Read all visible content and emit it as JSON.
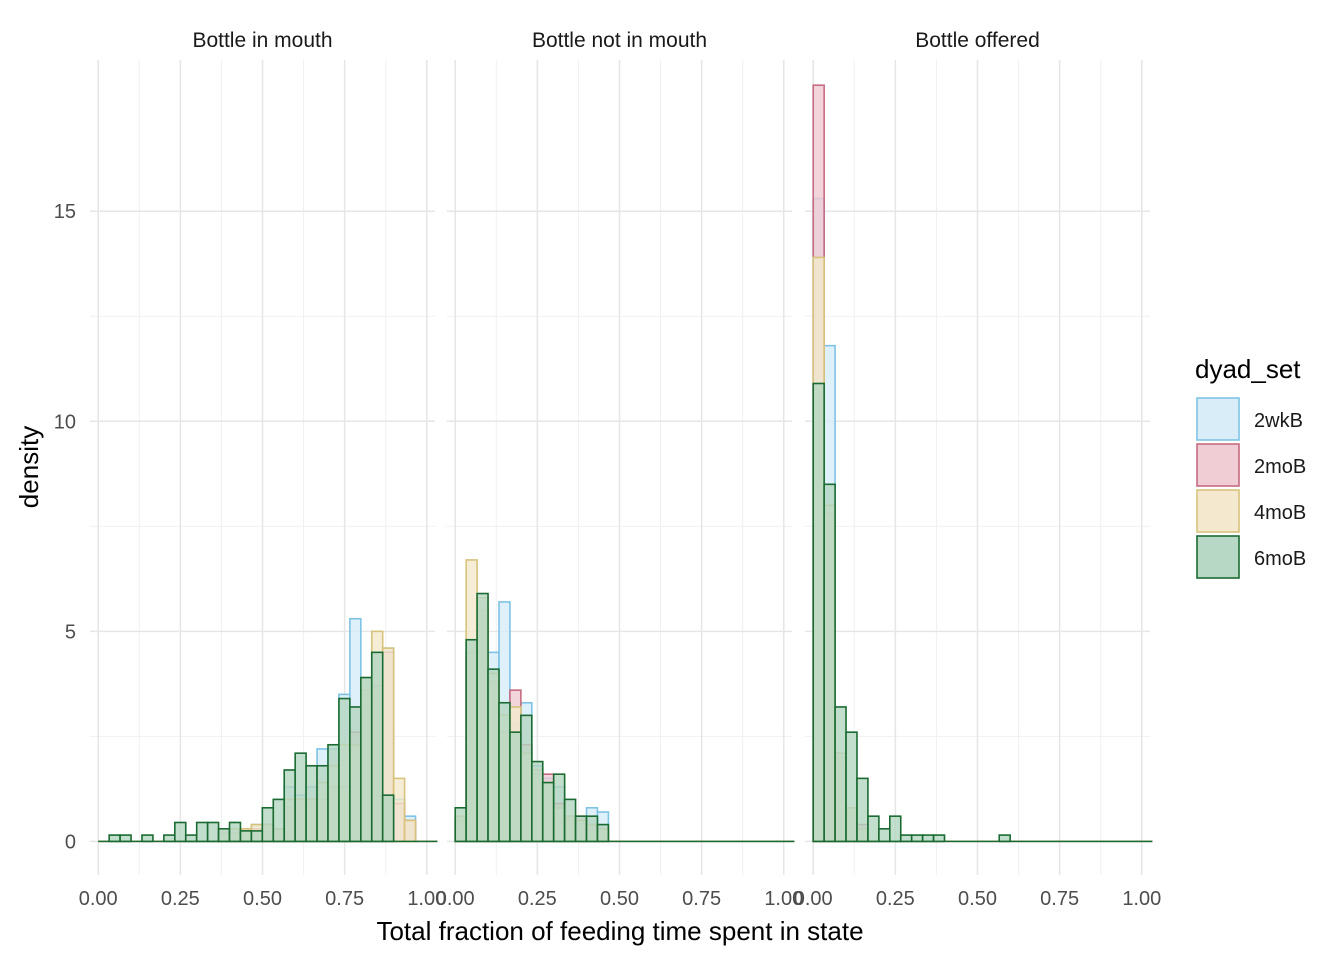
{
  "chart_data": {
    "type": "histogram",
    "xlabel": "Total fraction of feeding time spent in state",
    "ylabel": "density",
    "xlim": [
      -0.025,
      1.025
    ],
    "ylim": [
      -0.8,
      18.6
    ],
    "x_ticks": [
      0,
      0.25,
      0.5,
      0.75,
      1
    ],
    "x_tick_labels": [
      "0.00",
      "0.25",
      "0.50",
      "0.75",
      "1.00"
    ],
    "y_ticks": [
      0,
      5,
      10,
      15
    ],
    "y_tick_labels": [
      "0",
      "5",
      "10",
      "15"
    ],
    "bin_start": 0,
    "bin_width": 0.0333,
    "grid": true,
    "legend": {
      "title": "dyad_set",
      "position": "right",
      "items": [
        {
          "name": "2wkB",
          "fill": "#d6ecf7",
          "stroke": "#7ec3e5"
        },
        {
          "name": "2moB",
          "fill": "#efc9d2",
          "stroke": "#c66b80"
        },
        {
          "name": "4moB",
          "fill": "#f3e8cb",
          "stroke": "#d7c37c"
        },
        {
          "name": "6moB",
          "fill": "#b3d6c1",
          "stroke": "#1a6b32"
        }
      ]
    },
    "panels": [
      {
        "title": "Bottle in mouth",
        "series": [
          {
            "name": "2wkB",
            "values": [
              0,
              0,
              0,
              0,
              0,
              0,
              0,
              0,
              0,
              0,
              0,
              0.2,
              0.3,
              0.3,
              0.4,
              0.4,
              0.3,
              1.3,
              1.1,
              1.3,
              2.2,
              2.2,
              3.5,
              5.3,
              3.0,
              3.3,
              4.6,
              1.0,
              0.6,
              0,
              0
            ]
          },
          {
            "name": "2moB",
            "values": [
              0,
              0,
              0,
              0,
              0,
              0,
              0,
              0,
              0,
              0,
              0,
              0.2,
              0.2,
              0.3,
              0.3,
              0.4,
              0.3,
              0.8,
              1.0,
              1.0,
              1.0,
              1.3,
              1.3,
              2.6,
              3.6,
              3.7,
              4.5,
              0.9,
              0.5,
              0,
              0
            ]
          },
          {
            "name": "4moB",
            "values": [
              0,
              0,
              0,
              0,
              0,
              0,
              0,
              0,
              0,
              0,
              0,
              0.3,
              0.3,
              0.3,
              0.4,
              0.4,
              0.3,
              1.0,
              1.0,
              1.0,
              1.4,
              1.8,
              2.3,
              2.3,
              3.9,
              5.0,
              4.6,
              1.5,
              0.5,
              0,
              0
            ]
          },
          {
            "name": "6moB",
            "values": [
              0,
              0.15,
              0.15,
              0,
              0.15,
              0,
              0.15,
              0.45,
              0.15,
              0.45,
              0.45,
              0.3,
              0.45,
              0.25,
              0.25,
              0.8,
              1.0,
              1.7,
              2.1,
              1.8,
              1.8,
              2.3,
              3.4,
              3.2,
              3.9,
              4.5,
              1.1,
              0,
              0,
              0,
              0
            ]
          }
        ]
      },
      {
        "title": "Bottle not in mouth",
        "series": [
          {
            "name": "2wkB",
            "values": [
              0.5,
              4.5,
              5.0,
              4.5,
              5.7,
              2.8,
              3.3,
              1.8,
              1.5,
              1.3,
              0.5,
              0.4,
              0.8,
              0.7,
              0,
              0,
              0,
              0,
              0,
              0,
              0,
              0,
              0,
              0,
              0,
              0,
              0,
              0,
              0,
              0,
              0
            ]
          },
          {
            "name": "2moB",
            "values": [
              0.5,
              4.5,
              5.5,
              3.8,
              2.6,
              3.6,
              2.3,
              1.6,
              1.6,
              0.9,
              0.6,
              0.6,
              0.4,
              0.3,
              0,
              0,
              0,
              0,
              0,
              0,
              0,
              0,
              0,
              0,
              0,
              0,
              0,
              0,
              0,
              0,
              0
            ]
          },
          {
            "name": "4moB",
            "values": [
              0.6,
              6.7,
              5.8,
              4.0,
              3.0,
              3.2,
              2.1,
              1.7,
              1.4,
              0.8,
              0.6,
              0.5,
              0.4,
              0.3,
              0,
              0,
              0,
              0,
              0,
              0,
              0,
              0,
              0,
              0,
              0,
              0,
              0,
              0,
              0,
              0,
              0
            ]
          },
          {
            "name": "6moB",
            "values": [
              0.8,
              4.8,
              5.9,
              4.1,
              3.3,
              2.6,
              3.0,
              1.9,
              1.4,
              1.6,
              1.0,
              0.6,
              0.6,
              0.4,
              0,
              0,
              0,
              0,
              0,
              0,
              0,
              0,
              0,
              0,
              0,
              0,
              0,
              0,
              0,
              0,
              0
            ]
          }
        ]
      },
      {
        "title": "Bottle offered",
        "series": [
          {
            "name": "2wkB",
            "values": [
              15.3,
              11.8,
              1.8,
              0.5,
              0.3,
              0,
              0,
              0,
              0,
              0,
              0,
              0,
              0,
              0,
              0,
              0,
              0,
              0,
              0,
              0,
              0,
              0,
              0,
              0,
              0,
              0,
              0,
              0,
              0,
              0,
              0
            ]
          },
          {
            "name": "2moB",
            "values": [
              18.0,
              7.8,
              2.0,
              0.8,
              0.4,
              0,
              0,
              0,
              0,
              0,
              0,
              0,
              0,
              0,
              0,
              0,
              0,
              0,
              0,
              0,
              0,
              0,
              0,
              0,
              0,
              0,
              0,
              0,
              0,
              0,
              0
            ]
          },
          {
            "name": "4moB",
            "values": [
              13.9,
              8.0,
              2.1,
              0.8,
              0.3,
              0,
              0,
              0,
              0,
              0,
              0,
              0,
              0,
              0,
              0,
              0,
              0,
              0,
              0,
              0,
              0,
              0,
              0,
              0,
              0,
              0,
              0,
              0,
              0,
              0,
              0
            ]
          },
          {
            "name": "6moB",
            "values": [
              10.9,
              8.5,
              3.2,
              2.6,
              1.5,
              0.6,
              0.3,
              0.6,
              0.15,
              0.15,
              0.15,
              0.15,
              0,
              0,
              0,
              0,
              0,
              0.15,
              0,
              0,
              0,
              0,
              0,
              0,
              0,
              0,
              0,
              0,
              0,
              0,
              0
            ]
          }
        ]
      }
    ]
  }
}
